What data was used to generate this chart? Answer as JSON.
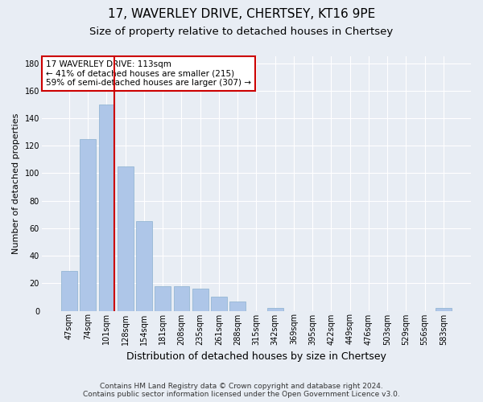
{
  "title1": "17, WAVERLEY DRIVE, CHERTSEY, KT16 9PE",
  "title2": "Size of property relative to detached houses in Chertsey",
  "xlabel": "Distribution of detached houses by size in Chertsey",
  "ylabel": "Number of detached properties",
  "bar_labels": [
    "47sqm",
    "74sqm",
    "101sqm",
    "128sqm",
    "154sqm",
    "181sqm",
    "208sqm",
    "235sqm",
    "261sqm",
    "288sqm",
    "315sqm",
    "342sqm",
    "369sqm",
    "395sqm",
    "422sqm",
    "449sqm",
    "476sqm",
    "503sqm",
    "529sqm",
    "556sqm",
    "583sqm"
  ],
  "bar_values": [
    29,
    125,
    150,
    105,
    65,
    18,
    18,
    16,
    10,
    7,
    0,
    2,
    0,
    0,
    0,
    0,
    0,
    0,
    0,
    0,
    2
  ],
  "bar_color": "#aec6e8",
  "bar_edge_color": "#8ab0d0",
  "vline_index": 2,
  "vline_color": "#cc0000",
  "annotation_line1": "17 WAVERLEY DRIVE: 113sqm",
  "annotation_line2": "← 41% of detached houses are smaller (215)",
  "annotation_line3": "59% of semi-detached houses are larger (307) →",
  "annotation_box_color": "#ffffff",
  "annotation_box_edge": "#cc0000",
  "ylim": [
    0,
    185
  ],
  "yticks": [
    0,
    20,
    40,
    60,
    80,
    100,
    120,
    140,
    160,
    180
  ],
  "bg_color": "#e8edf4",
  "plot_bg_color": "#e8edf4",
  "footer1": "Contains HM Land Registry data © Crown copyright and database right 2024.",
  "footer2": "Contains public sector information licensed under the Open Government Licence v3.0.",
  "title1_fontsize": 11,
  "title2_fontsize": 9.5,
  "xlabel_fontsize": 9,
  "ylabel_fontsize": 8,
  "tick_fontsize": 7,
  "annotation_fontsize": 7.5,
  "footer_fontsize": 6.5
}
